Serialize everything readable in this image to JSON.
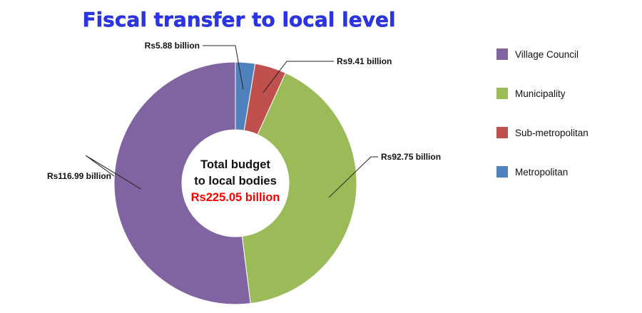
{
  "chart_data": {
    "type": "pie",
    "title": "Fiscal transfer to local level",
    "center_text": {
      "line1": "Total budget",
      "line2": "to local bodies",
      "total": "Rs225.05 billion"
    },
    "slices": [
      {
        "name": "Metropolitan",
        "value": 5.88,
        "label": "Rs5.88 billion",
        "color": "#4f81bd"
      },
      {
        "name": "Sub-metropolitan",
        "value": 9.41,
        "label": "Rs9.41 billion",
        "color": "#c0504d"
      },
      {
        "name": "Municipality",
        "value": 92.75,
        "label": "Rs92.75 billion",
        "color": "#9bbb59"
      },
      {
        "name": "Village Council",
        "value": 116.99,
        "label": "Rs116.99 billion",
        "color": "#8064a2"
      }
    ],
    "legend": [
      "Village Council",
      "Municipality",
      "Sub-metropolitan",
      "Metropolitan"
    ],
    "legend_position": "right",
    "total_color": "#ff0000"
  }
}
